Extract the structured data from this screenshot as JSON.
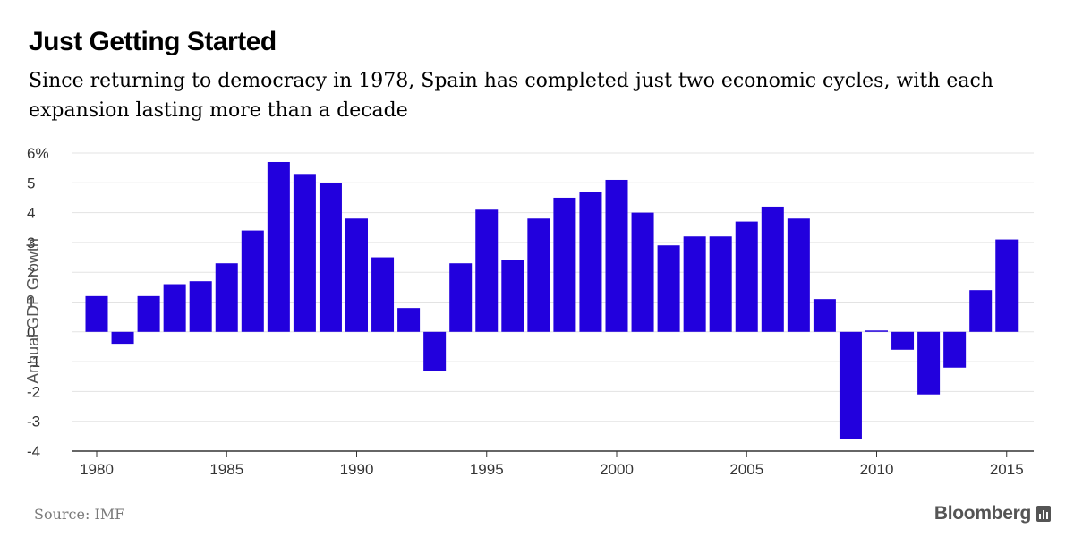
{
  "header": {
    "title": "Just Getting Started",
    "subtitle": "Since returning to democracy in 1978, Spain has completed just two economic cycles, with each expansion lasting more than a decade"
  },
  "footer": {
    "source": "Source: IMF",
    "brand": "Bloomberg"
  },
  "colors": {
    "bar": "#2200dd",
    "grid": "#e3e3e3",
    "axis": "#333333"
  },
  "chart_data": {
    "type": "bar",
    "title": "Just Getting Started",
    "xlabel": "",
    "ylabel": "Annual GDP Growth",
    "ylim": [
      -4,
      6
    ],
    "grid": true,
    "y_ticks": [
      {
        "value": 6,
        "label": "6%"
      },
      {
        "value": 5,
        "label": "5"
      },
      {
        "value": 4,
        "label": "4"
      },
      {
        "value": 3,
        "label": "3"
      },
      {
        "value": 2,
        "label": "2"
      },
      {
        "value": 1,
        "label": "1"
      },
      {
        "value": 0,
        "label": "0"
      },
      {
        "value": -1,
        "label": "-1"
      },
      {
        "value": -2,
        "label": "-2"
      },
      {
        "value": -3,
        "label": "-3"
      },
      {
        "value": -4,
        "label": "-4"
      }
    ],
    "x_ticks": [
      "1980",
      "1985",
      "1990",
      "1995",
      "2000",
      "2005",
      "2010",
      "2015"
    ],
    "categories": [
      1980,
      1981,
      1982,
      1983,
      1984,
      1985,
      1986,
      1987,
      1988,
      1989,
      1990,
      1991,
      1992,
      1993,
      1994,
      1995,
      1996,
      1997,
      1998,
      1999,
      2000,
      2001,
      2002,
      2003,
      2004,
      2005,
      2006,
      2007,
      2008,
      2009,
      2010,
      2011,
      2012,
      2013,
      2014,
      2015
    ],
    "values": [
      1.2,
      -0.4,
      1.2,
      1.6,
      1.7,
      2.3,
      3.4,
      5.7,
      5.3,
      5.0,
      3.8,
      2.5,
      0.8,
      -1.3,
      2.3,
      4.1,
      2.4,
      3.8,
      4.5,
      4.7,
      5.1,
      4.0,
      2.9,
      3.2,
      3.2,
      3.7,
      4.2,
      3.8,
      1.1,
      -3.6,
      0.0,
      -0.6,
      -2.1,
      -1.2,
      1.4,
      3.1
    ]
  }
}
